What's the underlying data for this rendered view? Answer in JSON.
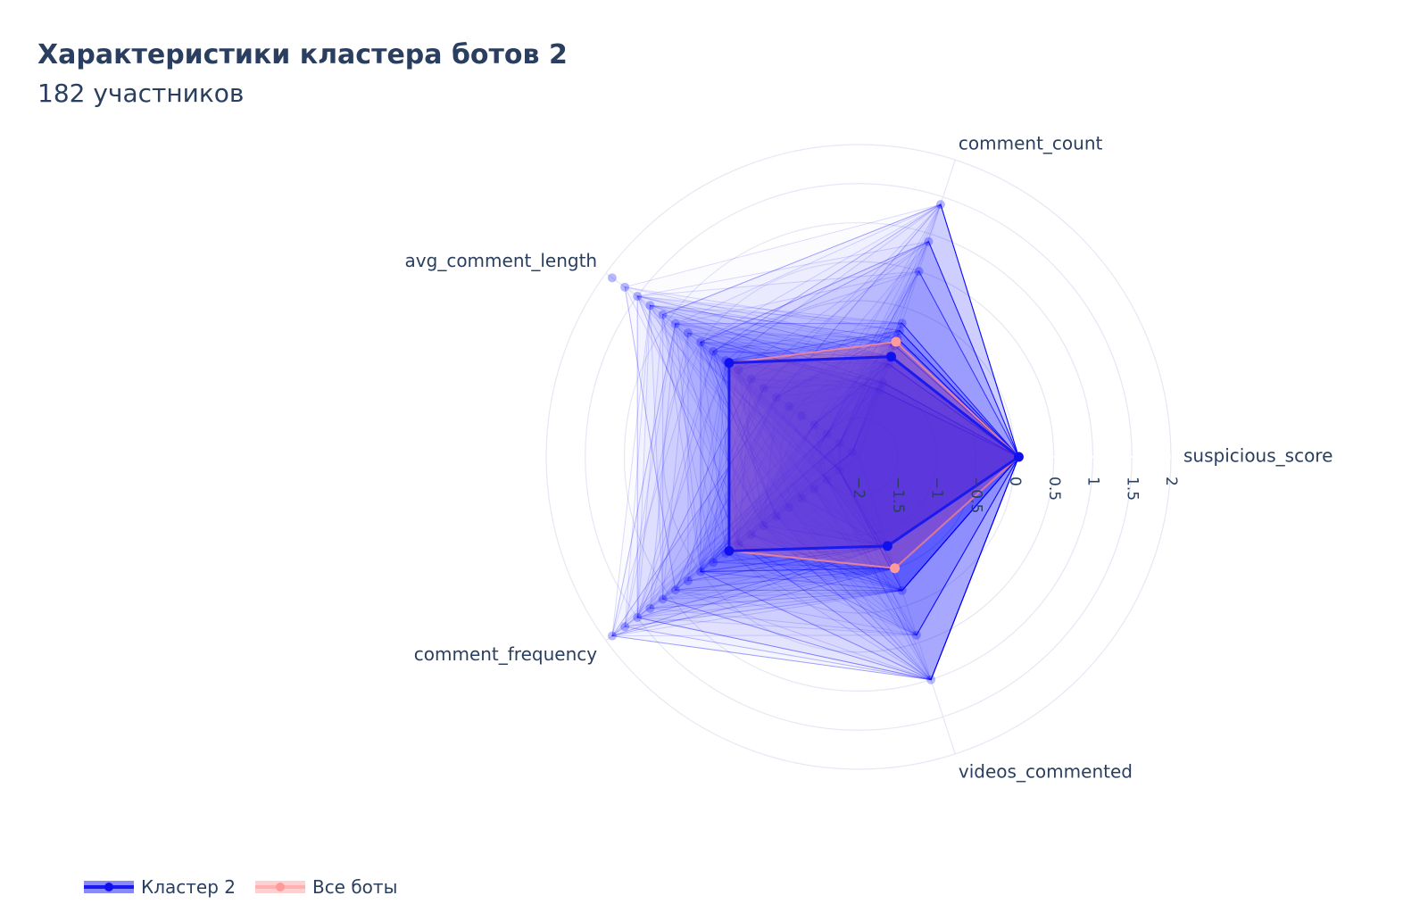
{
  "title": "Характеристики кластера ботов 2",
  "subtitle": "182 участников",
  "chart_data": {
    "type": "radar",
    "title": "Характеристики кластера ботов 2",
    "subtitle": "182 участников",
    "axes": [
      "suspicious_score",
      "comment_count",
      "avg_comment_length",
      "comment_frequency",
      "videos_commented"
    ],
    "radial_range": [
      -2,
      2
    ],
    "radial_ticks": [
      "−2",
      "−1.5",
      "−1",
      "−0.5",
      "0",
      "0.5",
      "1",
      "1.5",
      "2"
    ],
    "grid": true,
    "legend_position": "bottom-left",
    "series": [
      {
        "name": "Кластер 2",
        "color": "#0000ff",
        "values": [
          0.05,
          -0.65,
          0.05,
          0.05,
          -0.8
        ]
      },
      {
        "name": "Все боты",
        "color": "#ffaaaa",
        "values": [
          0.05,
          -0.45,
          0.05,
          0.05,
          -0.5
        ]
      }
    ],
    "members_sample": {
      "comment_count": [
        1.4,
        0.9,
        0.5,
        -0.2,
        -0.3,
        -0.4,
        -0.5,
        -0.65,
        -0.75,
        -1.0,
        -1.1
      ],
      "avg_comment_length": [
        1.9,
        1.7,
        1.5,
        1.3,
        1.1,
        0.9,
        0.7,
        0.5,
        0.3,
        0.1,
        -0.1,
        -0.3,
        -0.5,
        -0.7,
        -0.9,
        -1.1,
        -1.3,
        -1.5,
        -1.7,
        -1.9
      ],
      "comment_frequency": [
        1.9,
        1.7,
        1.5,
        1.3,
        1.1,
        0.9,
        0.7,
        0.5,
        0.3,
        0.1,
        -0.1,
        -0.3,
        -0.5,
        -0.7,
        -0.9,
        -1.1,
        -1.3,
        -1.5,
        -1.7
      ],
      "videos_commented": [
        1.0,
        0.4,
        -0.2,
        -0.5,
        -0.8
      ]
    }
  }
}
